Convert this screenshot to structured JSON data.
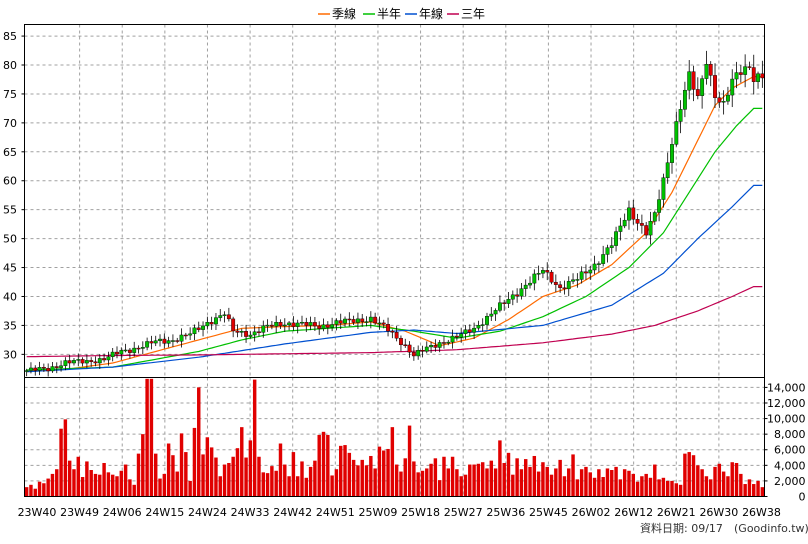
{
  "chart_data": [
    {
      "type": "candlestick",
      "legend": [
        "季線",
        "半年",
        "年線",
        "三年"
      ],
      "legend_colors": [
        "#ff6a00",
        "#00c000",
        "#0050d0",
        "#c00050"
      ],
      "legend_placement": "top-center",
      "ylim": [
        26,
        87
      ],
      "y_ticks": [
        30,
        35,
        40,
        45,
        50,
        55,
        60,
        65,
        70,
        75,
        80,
        85
      ],
      "x_ticks": [
        "23W40",
        "23W49",
        "24W06",
        "24W15",
        "24W24",
        "24W33",
        "24W42",
        "24W51",
        "25W09",
        "25W18",
        "25W27",
        "25W36",
        "25W45",
        "26W02",
        "26W12",
        "26W21",
        "26W30",
        "26W38"
      ],
      "grid": true,
      "up_color": "#00c000",
      "down_color": "#e00000",
      "close_key": [
        [
          0,
          27.2
        ],
        [
          5,
          27.5
        ],
        [
          9,
          28.6
        ],
        [
          14,
          28.8
        ],
        [
          18,
          29.2
        ],
        [
          22,
          30.5
        ],
        [
          26,
          31.2
        ],
        [
          30,
          32.2
        ],
        [
          34,
          32.5
        ],
        [
          38,
          33.5
        ],
        [
          42,
          35.5
        ],
        [
          46,
          37.0
        ],
        [
          48,
          34.0
        ],
        [
          52,
          33.5
        ],
        [
          56,
          34.8
        ],
        [
          60,
          35.4
        ],
        [
          64,
          35.2
        ],
        [
          68,
          34.8
        ],
        [
          72,
          35.5
        ],
        [
          76,
          35.8
        ],
        [
          80,
          36.2
        ],
        [
          84,
          34.2
        ],
        [
          88,
          31.5
        ],
        [
          90,
          29.8
        ],
        [
          93,
          31.0
        ],
        [
          96,
          32.0
        ],
        [
          100,
          33.0
        ],
        [
          104,
          34.5
        ],
        [
          108,
          37.0
        ],
        [
          112,
          39.5
        ],
        [
          116,
          42.0
        ],
        [
          120,
          44.5
        ],
        [
          124,
          41.5
        ],
        [
          128,
          43.0
        ],
        [
          132,
          45.5
        ],
        [
          136,
          49.0
        ],
        [
          140,
          55.0
        ],
        [
          144,
          51.0
        ],
        [
          146,
          54.0
        ],
        [
          148,
          60.0
        ],
        [
          150,
          67.0
        ],
        [
          152,
          73.0
        ],
        [
          154,
          78.0
        ],
        [
          156,
          74.0
        ],
        [
          158,
          81.0
        ],
        [
          160,
          75.0
        ],
        [
          162,
          73.0
        ],
        [
          164,
          77.0
        ],
        [
          166,
          79.0
        ],
        [
          168,
          80.0
        ],
        [
          169,
          78.0
        ]
      ],
      "ma_quarter_key": [
        [
          0,
          27.0
        ],
        [
          10,
          27.5
        ],
        [
          20,
          28.5
        ],
        [
          30,
          30.5
        ],
        [
          40,
          32.5
        ],
        [
          50,
          34.5
        ],
        [
          60,
          34.8
        ],
        [
          70,
          35.0
        ],
        [
          80,
          35.6
        ],
        [
          88,
          34.0
        ],
        [
          96,
          31.5
        ],
        [
          104,
          32.8
        ],
        [
          112,
          36.0
        ],
        [
          120,
          40.0
        ],
        [
          128,
          42.0
        ],
        [
          136,
          45.5
        ],
        [
          144,
          51.0
        ],
        [
          150,
          58.0
        ],
        [
          156,
          67.0
        ],
        [
          160,
          73.0
        ],
        [
          164,
          76.0
        ],
        [
          169,
          78.0
        ]
      ],
      "ma_half_key": [
        [
          0,
          27.3
        ],
        [
          20,
          27.8
        ],
        [
          40,
          30.5
        ],
        [
          50,
          32.5
        ],
        [
          60,
          34.0
        ],
        [
          70,
          34.5
        ],
        [
          80,
          35.0
        ],
        [
          90,
          34.0
        ],
        [
          100,
          32.8
        ],
        [
          110,
          34.0
        ],
        [
          120,
          36.5
        ],
        [
          130,
          40.0
        ],
        [
          140,
          45.0
        ],
        [
          148,
          51.0
        ],
        [
          154,
          58.0
        ],
        [
          160,
          65.0
        ],
        [
          165,
          69.5
        ],
        [
          169,
          72.5
        ]
      ],
      "ma_year_key": [
        [
          0,
          27.0
        ],
        [
          20,
          27.8
        ],
        [
          40,
          29.5
        ],
        [
          60,
          31.8
        ],
        [
          80,
          33.8
        ],
        [
          90,
          34.2
        ],
        [
          100,
          33.6
        ],
        [
          120,
          35.0
        ],
        [
          136,
          38.5
        ],
        [
          148,
          44.0
        ],
        [
          156,
          50.0
        ],
        [
          164,
          55.5
        ],
        [
          169,
          59.2
        ]
      ],
      "ma_three_key": [
        [
          0,
          29.6
        ],
        [
          20,
          29.8
        ],
        [
          40,
          29.9
        ],
        [
          60,
          30.1
        ],
        [
          80,
          30.3
        ],
        [
          100,
          30.8
        ],
        [
          120,
          32.0
        ],
        [
          136,
          33.5
        ],
        [
          146,
          35.0
        ],
        [
          156,
          37.5
        ],
        [
          164,
          40.0
        ],
        [
          169,
          41.7
        ]
      ]
    },
    {
      "type": "bar",
      "series_color": "#e00000",
      "ylim": [
        0,
        14500
      ],
      "y_ticks": [
        "0",
        "2,000",
        "4,000",
        "6,000",
        "8,000",
        "10,000",
        "12,000",
        "14,000"
      ],
      "y_tick_values": [
        0,
        2000,
        4000,
        6000,
        8000,
        10000,
        12000,
        14000
      ],
      "values": [
        1200,
        1500,
        1000,
        1900,
        1700,
        2300,
        2900,
        3500,
        8700,
        9900,
        4600,
        3500,
        5100,
        2500,
        4500,
        3400,
        2900,
        2800,
        4300,
        3100,
        2800,
        2600,
        3300,
        4100,
        2200,
        1500,
        5500,
        8000,
        15100,
        15100,
        5500,
        2300,
        2900,
        6800,
        5300,
        3200,
        8100,
        5700,
        2000,
        8800,
        14000,
        5400,
        7600,
        6300,
        5000,
        2600,
        4100,
        4300,
        5100,
        6200,
        8900,
        5000,
        7200,
        15000,
        5100,
        3100,
        3000,
        3900,
        3300,
        6800,
        4100,
        2600,
        5700,
        2600,
        4500,
        2400,
        3800,
        4600,
        7900,
        8300,
        7900,
        2700,
        3500,
        6500,
        6600,
        5600,
        4700,
        4000,
        4700,
        4000,
        5200,
        3600,
        6400,
        5900,
        6100,
        8900,
        4100,
        3200,
        4900,
        9100,
        4500,
        3100,
        3300,
        3600,
        4200,
        4900,
        2100,
        5100,
        3600,
        5100,
        3500,
        2600,
        2800,
        4100,
        4100,
        4200,
        4400,
        3600,
        4600,
        3600,
        7200,
        4300,
        5600,
        2800,
        4900,
        3500,
        4800,
        3800,
        5200,
        3200,
        4400,
        3800,
        2800,
        3600,
        4700,
        2600,
        3600,
        5400,
        2200,
        3500,
        3800,
        3100,
        2400,
        3500,
        2500,
        3600,
        3400,
        3800,
        2200,
        3500,
        3300,
        2900,
        1900,
        2600,
        2900,
        2400,
        4100,
        2200,
        2400,
        2000,
        2000,
        1700,
        1500,
        5500,
        5700,
        5300,
        4000,
        3500,
        2600,
        2200,
        3800,
        4200,
        3200,
        2600,
        4400,
        4300,
        2900,
        1600,
        2200,
        1600,
        2000,
        1200
      ]
    }
  ],
  "footer": {
    "label": "資料日期: 09/17",
    "source": "(Goodinfo.tw)"
  }
}
